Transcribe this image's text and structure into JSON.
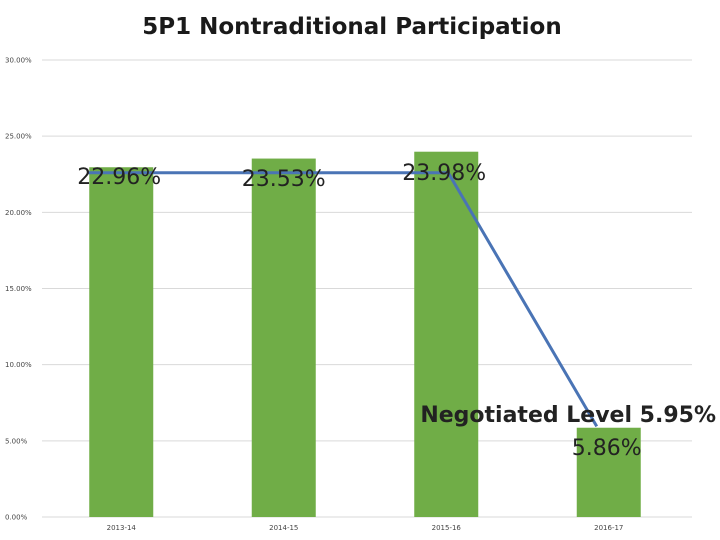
{
  "chart_data": {
    "type": "bar",
    "title": "5P1 Nontraditional Participation",
    "categories": [
      "2013-14",
      "2014-15",
      "2015-16",
      "2016-17"
    ],
    "series": [
      {
        "values": [
          22.96,
          23.53,
          23.98,
          5.86
        ],
        "color": "#70ad47"
      }
    ],
    "data_labels": [
      "22.96%",
      "23.53%",
      "23.98%",
      "5.86%"
    ],
    "line_series": {
      "values": [
        22.6,
        22.6,
        22.6,
        5.95
      ],
      "color": "#4a74b5"
    },
    "annotation": "Negotiated Level 5.95%",
    "ylim": [
      0,
      30
    ],
    "y_ticks": [
      0,
      5,
      10,
      15,
      20,
      25,
      30
    ],
    "y_tick_labels": [
      "0.00%",
      "5.00%",
      "10.00%",
      "15.00%",
      "20.00%",
      "25.00%",
      "30.00%"
    ],
    "grid": true,
    "legend": "none"
  }
}
